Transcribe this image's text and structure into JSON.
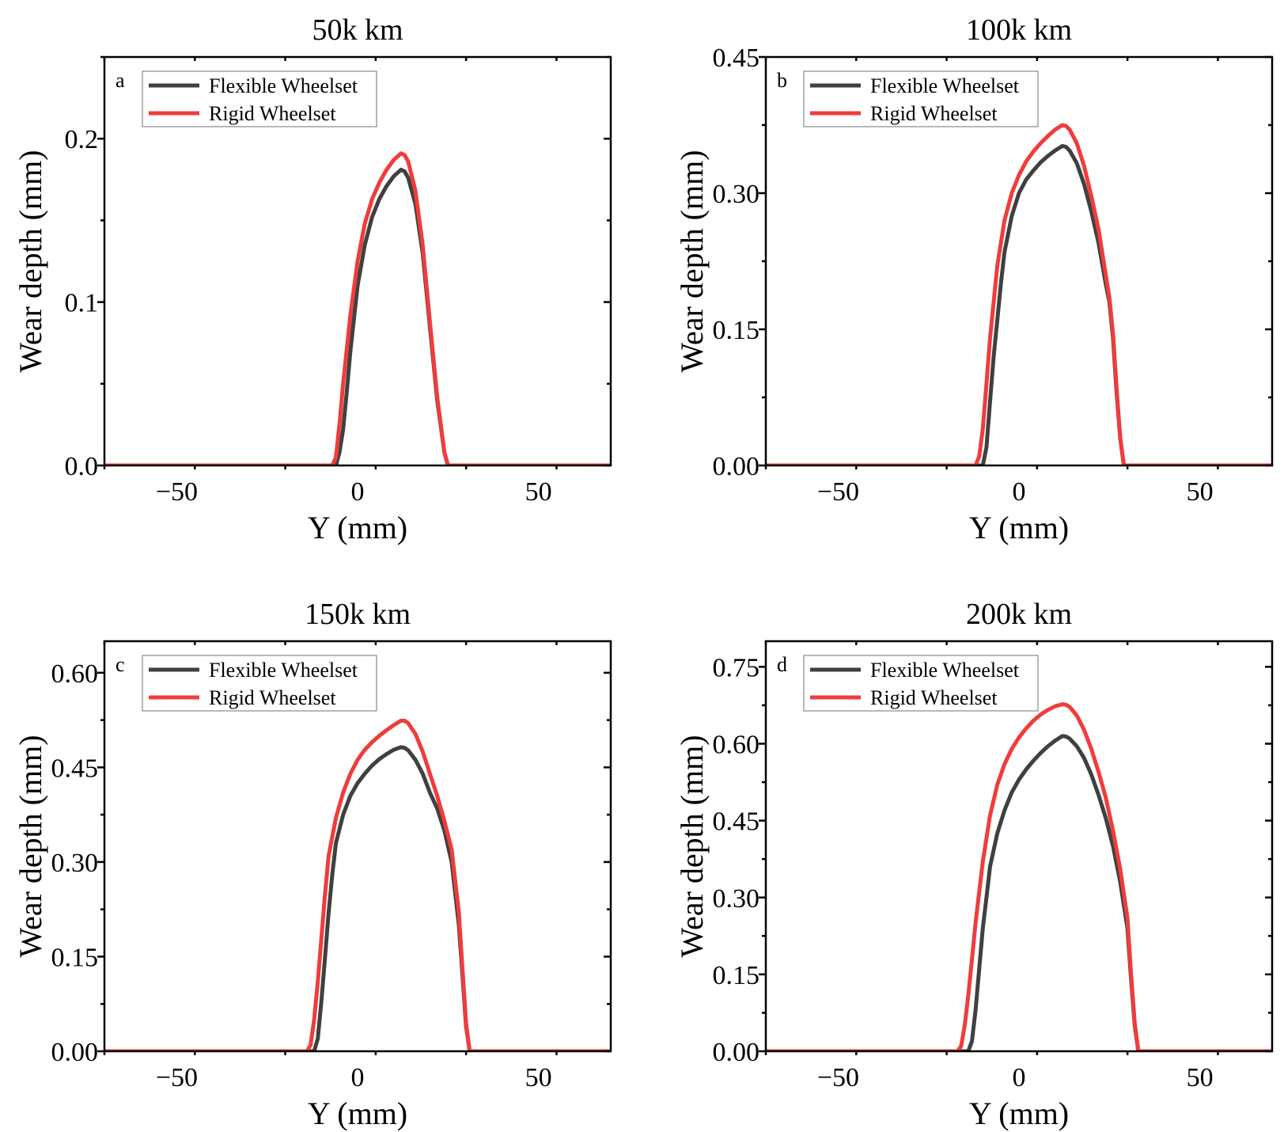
{
  "chart_data": [
    {
      "type": "line",
      "panel_label": "a",
      "title": "50k km",
      "xlabel": "Y (mm)",
      "ylabel": "Wear depth (mm)",
      "xlim": [
        -70,
        70
      ],
      "ylim": [
        0,
        0.25
      ],
      "xticks": [
        -50,
        0,
        50
      ],
      "xtick_labels": [
        "−50",
        "0",
        "50"
      ],
      "yticks": [
        0,
        0.1,
        0.2
      ],
      "ytick_labels": [
        "0.0",
        "0.1",
        "0.2"
      ],
      "legend": {
        "position": "top-left",
        "entries": [
          "Flexible Wheelset",
          "Rigid Wheelset"
        ]
      },
      "series": [
        {
          "name": "Flexible Wheelset",
          "color": "#404040",
          "x": [
            -70,
            -6,
            -5,
            -4,
            -3,
            -2,
            0,
            2,
            4,
            6,
            8,
            10,
            12,
            13,
            14,
            16,
            18,
            20,
            22,
            24,
            25,
            70
          ],
          "values": [
            0,
            0,
            0.008,
            0.022,
            0.045,
            0.07,
            0.11,
            0.135,
            0.152,
            0.163,
            0.171,
            0.177,
            0.181,
            0.18,
            0.176,
            0.16,
            0.13,
            0.085,
            0.04,
            0.008,
            0,
            0
          ]
        },
        {
          "name": "Rigid Wheelset",
          "color": "#f03c3c",
          "x": [
            -70,
            -7,
            -6,
            -5,
            -4,
            -2,
            0,
            2,
            4,
            6,
            8,
            10,
            12,
            13,
            14,
            16,
            18,
            20,
            22,
            24,
            25,
            70
          ],
          "values": [
            0,
            0,
            0.005,
            0.025,
            0.05,
            0.092,
            0.125,
            0.148,
            0.163,
            0.173,
            0.181,
            0.187,
            0.191,
            0.19,
            0.186,
            0.168,
            0.135,
            0.088,
            0.042,
            0.008,
            0,
            0
          ]
        }
      ]
    },
    {
      "type": "line",
      "panel_label": "b",
      "title": "100k km",
      "xlabel": "Y (mm)",
      "ylabel": "Wear depth (mm)",
      "xlim": [
        -70,
        70
      ],
      "ylim": [
        0,
        0.45
      ],
      "xticks": [
        -50,
        0,
        50
      ],
      "xtick_labels": [
        "−50",
        "0",
        "50"
      ],
      "yticks": [
        0,
        0.15,
        0.3,
        0.45
      ],
      "ytick_labels": [
        "0.00",
        "0.15",
        "0.30",
        "0.45"
      ],
      "legend": {
        "position": "top-left",
        "entries": [
          "Flexible Wheelset",
          "Rigid Wheelset"
        ]
      },
      "series": [
        {
          "name": "Flexible Wheelset",
          "color": "#404040",
          "x": [
            -70,
            -10,
            -9,
            -8,
            -7,
            -6,
            -5,
            -4,
            -2,
            0,
            2,
            4,
            6,
            8,
            10,
            12,
            13,
            14,
            16,
            18,
            20,
            22,
            24,
            25,
            26,
            27,
            28,
            29,
            70
          ],
          "values": [
            0,
            0,
            0.02,
            0.07,
            0.12,
            0.16,
            0.2,
            0.235,
            0.275,
            0.3,
            0.315,
            0.325,
            0.334,
            0.341,
            0.347,
            0.352,
            0.351,
            0.347,
            0.333,
            0.31,
            0.28,
            0.245,
            0.2,
            0.18,
            0.14,
            0.08,
            0.03,
            0,
            0
          ]
        },
        {
          "name": "Rigid Wheelset",
          "color": "#f03c3c",
          "x": [
            -70,
            -12,
            -11,
            -10,
            -9,
            -8,
            -7,
            -6,
            -4,
            -2,
            0,
            2,
            4,
            6,
            8,
            10,
            12,
            13,
            14,
            16,
            18,
            20,
            22,
            24,
            25,
            26,
            27,
            28,
            29,
            70
          ],
          "values": [
            0,
            0,
            0.01,
            0.04,
            0.09,
            0.14,
            0.18,
            0.22,
            0.27,
            0.3,
            0.32,
            0.335,
            0.346,
            0.355,
            0.363,
            0.37,
            0.375,
            0.374,
            0.37,
            0.355,
            0.33,
            0.297,
            0.26,
            0.21,
            0.185,
            0.145,
            0.085,
            0.03,
            0,
            0
          ]
        }
      ]
    },
    {
      "type": "line",
      "panel_label": "c",
      "title": "150k km",
      "xlabel": "Y (mm)",
      "ylabel": "Wear depth (mm)",
      "xlim": [
        -70,
        70
      ],
      "ylim": [
        0,
        0.65
      ],
      "xticks": [
        -50,
        0,
        50
      ],
      "xtick_labels": [
        "−50",
        "0",
        "50"
      ],
      "yticks": [
        0,
        0.15,
        0.3,
        0.45,
        0.6
      ],
      "ytick_labels": [
        "0.00",
        "0.15",
        "0.30",
        "0.45",
        "0.60"
      ],
      "legend": {
        "position": "top-left",
        "entries": [
          "Flexible Wheelset",
          "Rigid Wheelset"
        ]
      },
      "series": [
        {
          "name": "Flexible Wheelset",
          "color": "#404040",
          "x": [
            -70,
            -12,
            -11,
            -10,
            -9,
            -8,
            -7,
            -6,
            -4,
            -2,
            0,
            2,
            4,
            6,
            8,
            10,
            12,
            13,
            14,
            16,
            18,
            20,
            22,
            24,
            26,
            28,
            29,
            30,
            31,
            70
          ],
          "values": [
            0,
            0,
            0.02,
            0.08,
            0.15,
            0.22,
            0.28,
            0.33,
            0.375,
            0.405,
            0.425,
            0.44,
            0.453,
            0.463,
            0.471,
            0.478,
            0.482,
            0.481,
            0.477,
            0.462,
            0.44,
            0.41,
            0.385,
            0.35,
            0.3,
            0.2,
            0.12,
            0.04,
            0,
            0
          ]
        },
        {
          "name": "Rigid Wheelset",
          "color": "#f03c3c",
          "x": [
            -70,
            -14,
            -13,
            -12,
            -11,
            -10,
            -9,
            -8,
            -6,
            -4,
            -2,
            0,
            2,
            4,
            6,
            8,
            10,
            12,
            13,
            14,
            16,
            18,
            20,
            22,
            24,
            26,
            28,
            29,
            30,
            31,
            70
          ],
          "values": [
            0,
            0,
            0.01,
            0.05,
            0.11,
            0.18,
            0.25,
            0.31,
            0.37,
            0.41,
            0.44,
            0.462,
            0.478,
            0.49,
            0.5,
            0.509,
            0.517,
            0.524,
            0.524,
            0.52,
            0.503,
            0.475,
            0.44,
            0.405,
            0.365,
            0.32,
            0.22,
            0.13,
            0.045,
            0,
            0
          ]
        }
      ]
    },
    {
      "type": "line",
      "panel_label": "d",
      "title": "200k km",
      "xlabel": "Y (mm)",
      "ylabel": "Wear depth (mm)",
      "xlim": [
        -70,
        70
      ],
      "ylim": [
        0,
        0.8
      ],
      "xticks": [
        -50,
        0,
        50
      ],
      "xtick_labels": [
        "−50",
        "0",
        "50"
      ],
      "yticks": [
        0,
        0.15,
        0.3,
        0.45,
        0.6,
        0.75
      ],
      "ytick_labels": [
        "0.00",
        "0.15",
        "0.30",
        "0.45",
        "0.60",
        "0.75"
      ],
      "legend": {
        "position": "top-left",
        "entries": [
          "Flexible Wheelset",
          "Rigid Wheelset"
        ]
      },
      "series": [
        {
          "name": "Flexible Wheelset",
          "color": "#404040",
          "x": [
            -70,
            -14,
            -13,
            -12,
            -11,
            -10,
            -9,
            -8,
            -6,
            -4,
            -2,
            0,
            2,
            4,
            6,
            8,
            10,
            12,
            13,
            14,
            16,
            18,
            20,
            22,
            24,
            26,
            28,
            30,
            31,
            32,
            33,
            70
          ],
          "values": [
            0,
            0,
            0.02,
            0.08,
            0.16,
            0.24,
            0.3,
            0.36,
            0.425,
            0.47,
            0.505,
            0.53,
            0.55,
            0.567,
            0.582,
            0.595,
            0.606,
            0.615,
            0.614,
            0.61,
            0.595,
            0.572,
            0.54,
            0.5,
            0.455,
            0.4,
            0.33,
            0.24,
            0.14,
            0.05,
            0,
            0
          ]
        },
        {
          "name": "Rigid Wheelset",
          "color": "#f03c3c",
          "x": [
            -70,
            -17,
            -16,
            -15,
            -14,
            -13,
            -12,
            -10,
            -8,
            -6,
            -4,
            -2,
            0,
            2,
            4,
            6,
            8,
            10,
            12,
            13,
            14,
            16,
            18,
            20,
            22,
            24,
            26,
            28,
            30,
            31,
            32,
            33,
            70
          ],
          "values": [
            0,
            0,
            0.01,
            0.05,
            0.11,
            0.18,
            0.25,
            0.37,
            0.46,
            0.52,
            0.56,
            0.59,
            0.612,
            0.63,
            0.645,
            0.657,
            0.666,
            0.673,
            0.677,
            0.676,
            0.672,
            0.655,
            0.627,
            0.59,
            0.545,
            0.495,
            0.43,
            0.355,
            0.26,
            0.15,
            0.055,
            0,
            0
          ]
        }
      ]
    }
  ]
}
